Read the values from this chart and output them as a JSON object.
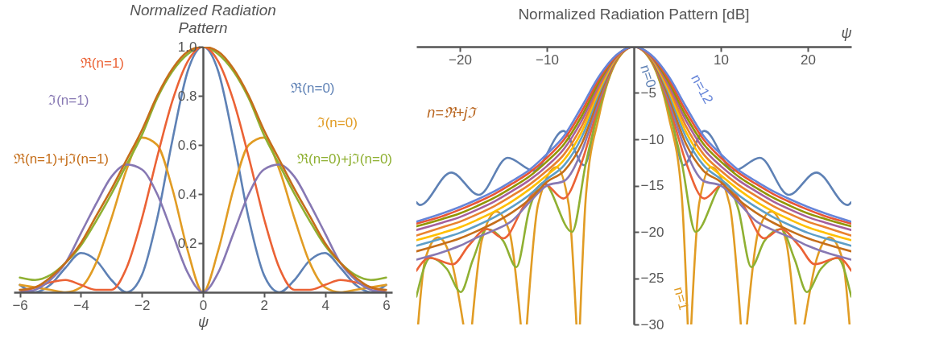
{
  "chart_data": [
    {
      "type": "line",
      "title": "Normalized Radiation Pattern",
      "xlabel": "ψ",
      "xlim": [
        -6.2,
        6.2
      ],
      "ylim": [
        0,
        1
      ],
      "xticks": [
        -6,
        -4,
        -2,
        0,
        2,
        4,
        6
      ],
      "yticks": [
        0.2,
        0.4,
        0.6,
        0.8,
        {
          "value": 1,
          "label": "1.0"
        }
      ],
      "grid": false,
      "legend": false,
      "x": [
        -6,
        -5.5,
        -5,
        -4.5,
        -4,
        -3.5,
        -3,
        -2.5,
        -2,
        -1.5,
        -1,
        -0.5,
        0,
        0.5,
        1,
        1.5,
        2,
        2.5,
        3,
        3.5,
        4,
        4.5,
        5,
        5.5,
        6
      ],
      "series": [
        {
          "name": "ℜ(n=0)",
          "color": "#5e81b5",
          "values": [
            0.03,
            0.0,
            0.03,
            0.1,
            0.16,
            0.13,
            0.05,
            0.0,
            0.07,
            0.3,
            0.62,
            0.9,
            1,
            0.9,
            0.62,
            0.3,
            0.07,
            0.0,
            0.05,
            0.13,
            0.16,
            0.1,
            0.03,
            0.0,
            0.03
          ]
        },
        {
          "name": "ℑ(n=0)",
          "color": "#e19c24",
          "values": [
            0.03,
            0.02,
            0.01,
            0.0,
            0.02,
            0.12,
            0.3,
            0.5,
            0.63,
            0.6,
            0.42,
            0.17,
            0,
            0.17,
            0.42,
            0.6,
            0.63,
            0.5,
            0.3,
            0.12,
            0.02,
            0.0,
            0.01,
            0.02,
            0.03
          ]
        },
        {
          "name": "ℜ(n=0)+jℑ(n=0)",
          "color": "#8fb032",
          "values": [
            0.06,
            0.05,
            0.07,
            0.12,
            0.19,
            0.29,
            0.4,
            0.52,
            0.64,
            0.79,
            0.9,
            0.97,
            1,
            0.97,
            0.9,
            0.79,
            0.64,
            0.52,
            0.4,
            0.29,
            0.19,
            0.12,
            0.07,
            0.05,
            0.06
          ]
        },
        {
          "name": "ℜ(n=1)",
          "color": "#eb6235",
          "values": [
            0.0,
            0.02,
            0.04,
            0.05,
            0.03,
            0.01,
            0.01,
            0.1,
            0.3,
            0.55,
            0.78,
            0.94,
            1,
            0.94,
            0.78,
            0.55,
            0.3,
            0.1,
            0.01,
            0.01,
            0.03,
            0.05,
            0.04,
            0.02,
            0.0
          ]
        },
        {
          "name": "ℑ(n=1)",
          "color": "#8778b3",
          "values": [
            0.0,
            0.01,
            0.05,
            0.12,
            0.24,
            0.36,
            0.47,
            0.52,
            0.5,
            0.4,
            0.24,
            0.08,
            0,
            0.08,
            0.24,
            0.4,
            0.5,
            0.52,
            0.47,
            0.36,
            0.24,
            0.12,
            0.05,
            0.01,
            0.0
          ]
        },
        {
          "name": "ℜ(n=1)+jℑ(n=1)",
          "color": "#c56e1a",
          "values": [
            0.01,
            0.02,
            0.06,
            0.12,
            0.2,
            0.31,
            0.42,
            0.54,
            0.66,
            0.8,
            0.91,
            0.98,
            1,
            0.98,
            0.91,
            0.8,
            0.66,
            0.54,
            0.42,
            0.31,
            0.2,
            0.12,
            0.06,
            0.02,
            0.01
          ]
        }
      ]
    },
    {
      "type": "line",
      "title": "Normalized Radiation Pattern [dB]",
      "xlabel": "ψ",
      "xlim": [
        -25,
        25
      ],
      "ylim": [
        -30,
        0
      ],
      "xticks": [
        -20,
        -10,
        10,
        20
      ],
      "yticks": [
        -5,
        -10,
        -15,
        -20,
        -25,
        -30
      ],
      "grid": false,
      "legend": false,
      "annotations": [
        "n=ℜ+jℑ"
      ],
      "x": [
        -25,
        -22,
        -20,
        -18,
        -16,
        -14,
        -12,
        -10,
        -8,
        -6,
        -4,
        -2,
        0,
        2,
        4,
        6,
        8,
        10,
        12,
        14,
        16,
        18,
        20,
        22,
        25
      ],
      "series": [
        {
          "name": "n=0",
          "color": "#5e81b5",
          "x": [
            -25,
            -24.6,
            -21,
            -17.8,
            -14.5,
            -11.5,
            -8.1,
            -5.7,
            -4,
            -2,
            0,
            2,
            4,
            5.7,
            8.1,
            11.5,
            14.5,
            17.8,
            21,
            24.6,
            25
          ],
          "values": [
            -16.8,
            -17.1,
            -13.6,
            -16,
            -12,
            -13.4,
            -9.1,
            -12.8,
            -6,
            -1.2,
            0,
            -1.2,
            -6,
            -12.8,
            -9.1,
            -13.4,
            -12,
            -16,
            -13.6,
            -17.1,
            -16.8
          ]
        },
        {
          "name": "n=1",
          "color": "#e19c24",
          "x": [
            -24.8,
            -24,
            -22.5,
            -21,
            -19.6,
            -19.1,
            -18.6,
            -17.5,
            -15.8,
            -14.3,
            -13,
            -12.65,
            -12.3,
            -11,
            -8.9,
            -7.5,
            -6.6,
            -6.4,
            -6.2,
            -5.5,
            -4,
            -2,
            0,
            2,
            4,
            5.5,
            6.2,
            6.4,
            6.6,
            7.5,
            8.9,
            11,
            12.3,
            12.65,
            13,
            14.3,
            15.8,
            17.5,
            18.6,
            19.1,
            19.6,
            21,
            22.5,
            24,
            24.8
          ],
          "values": [
            -30,
            -23,
            -20.6,
            -23,
            -30,
            null,
            -30,
            -21,
            -17.8,
            -20,
            -30,
            null,
            -30,
            -17,
            -13,
            -17,
            -30,
            null,
            -30,
            -16,
            -7.5,
            -1.6,
            0,
            -1.6,
            -7.5,
            -16,
            -30,
            null,
            -30,
            -17,
            -13,
            -17,
            -30,
            null,
            -30,
            -20,
            -17.8,
            -21,
            -30,
            null,
            -30,
            -23,
            -20.6,
            -23,
            -30
          ]
        },
        {
          "color": "#8fb032",
          "x": [
            -25,
            -23.4,
            -21.5,
            -19.9,
            -18.5,
            -16.9,
            -15,
            -13.5,
            -12,
            -10.4,
            -7.1,
            -5.5,
            -4,
            -2,
            0,
            2,
            4,
            5.5,
            7.1,
            10.4,
            12,
            13.5,
            15,
            16.9,
            18.5,
            19.9,
            21.5,
            23.4,
            25
          ],
          "values": [
            -27,
            -22.8,
            -24,
            -26.5,
            -23,
            -19.7,
            -21,
            -23.8,
            -17.5,
            -14.7,
            -20,
            -12.5,
            -6.8,
            -1.5,
            0,
            -1.5,
            -6.8,
            -12.5,
            -20,
            -14.7,
            -17.5,
            -23.8,
            -21,
            -19.7,
            -23,
            -26.5,
            -24,
            -22.8,
            -27
          ]
        },
        {
          "color": "#eb6235",
          "x": [
            -25,
            -23.5,
            -20.8,
            -19,
            -16.9,
            -15,
            -12.5,
            -10.3,
            -8.1,
            -6,
            -4,
            -2,
            0,
            2,
            4,
            6,
            8.1,
            10.3,
            12.5,
            15,
            16.9,
            19,
            20.8,
            23.5,
            25
          ],
          "values": [
            -24.2,
            -22.8,
            -23.5,
            -21.5,
            -19.7,
            -20.7,
            -17,
            -14.8,
            -16.4,
            -12.5,
            -6.2,
            -1.4,
            0,
            -1.4,
            -6.2,
            -12.5,
            -16.4,
            -14.8,
            -17,
            -20.7,
            -19.7,
            -21.5,
            -23.5,
            -22.8,
            -24.2
          ]
        },
        {
          "color": "#8778b3",
          "values": [
            -23.0,
            -22.2,
            -21.5,
            -20.6,
            -19.8,
            -18.8,
            -16.8,
            -15.0,
            -14.5,
            -11.3,
            -5.8,
            -1.3,
            0,
            -1.3,
            -5.8,
            -11.3,
            -14.5,
            -15.0,
            -16.8,
            -18.8,
            -19.8,
            -20.6,
            -21.5,
            -22.2,
            -23.0
          ]
        },
        {
          "color": "#c56e1a",
          "values": [
            -22.1,
            -21.3,
            -20.7,
            -19.9,
            -19.0,
            -17.9,
            -16.5,
            -14.6,
            -13.4,
            -10.5,
            -5.4,
            -1.3,
            0,
            -1.3,
            -5.4,
            -10.5,
            -13.4,
            -14.6,
            -16.5,
            -17.9,
            -19.0,
            -19.9,
            -20.7,
            -21.3,
            -22.1
          ]
        },
        {
          "color": "#5d9ec7",
          "values": [
            -21.5,
            -20.7,
            -20.1,
            -19.3,
            -18.4,
            -17.3,
            -16.0,
            -14.3,
            -12.8,
            -9.8,
            -5.0,
            -1.2,
            0,
            -1.2,
            -5.0,
            -9.8,
            -12.8,
            -14.3,
            -16.0,
            -17.3,
            -18.4,
            -19.3,
            -20.1,
            -20.7,
            -21.5
          ]
        },
        {
          "color": "#ffbf00",
          "values": [
            -20.9,
            -20.1,
            -19.5,
            -18.7,
            -17.8,
            -16.7,
            -15.4,
            -13.9,
            -12.2,
            -9.2,
            -4.7,
            -1.2,
            0,
            -1.2,
            -4.7,
            -9.2,
            -12.2,
            -13.9,
            -15.4,
            -16.7,
            -17.8,
            -18.7,
            -19.5,
            -20.1,
            -20.9
          ]
        },
        {
          "color": "#e9822f",
          "values": [
            -20.4,
            -19.5,
            -18.9,
            -18.1,
            -17.2,
            -16.1,
            -14.9,
            -13.4,
            -11.6,
            -8.6,
            -4.4,
            -1.1,
            0,
            -1.1,
            -4.4,
            -8.6,
            -11.6,
            -13.4,
            -14.9,
            -16.1,
            -17.2,
            -18.1,
            -18.9,
            -19.5,
            -20.4
          ]
        },
        {
          "color": "#a5609d",
          "values": [
            -19.8,
            -19.0,
            -18.4,
            -17.6,
            -16.7,
            -15.6,
            -14.4,
            -12.9,
            -11.0,
            -8.0,
            -4.1,
            -1.1,
            0,
            -1.1,
            -4.1,
            -8.0,
            -11.0,
            -12.9,
            -14.4,
            -15.6,
            -16.7,
            -17.6,
            -18.4,
            -19.0,
            -19.8
          ]
        },
        {
          "color": "#929600",
          "values": [
            -19.4,
            -18.6,
            -18.0,
            -17.2,
            -16.3,
            -15.2,
            -14.0,
            -12.4,
            -10.5,
            -7.5,
            -3.8,
            -1.0,
            0,
            -1.0,
            -3.8,
            -7.5,
            -10.5,
            -12.4,
            -14.0,
            -15.2,
            -16.3,
            -17.2,
            -18.0,
            -18.6,
            -19.4
          ]
        },
        {
          "color": "#e95536",
          "values": [
            -19.1,
            -18.3,
            -17.6,
            -16.8,
            -15.9,
            -14.8,
            -13.6,
            -12.0,
            -10.0,
            -7.0,
            -3.5,
            -1.0,
            0,
            -1.0,
            -3.5,
            -7.0,
            -10.0,
            -12.0,
            -13.6,
            -14.8,
            -15.9,
            -16.8,
            -17.6,
            -18.3,
            -19.1
          ]
        },
        {
          "name": "n=12",
          "color": "#6685d9",
          "values": [
            -18.9,
            -18.0,
            -17.3,
            -16.5,
            -15.6,
            -14.5,
            -13.3,
            -11.6,
            -9.6,
            -6.5,
            -3.2,
            -0.9,
            0,
            -0.9,
            -3.2,
            -6.5,
            -9.6,
            -11.6,
            -13.3,
            -14.5,
            -15.6,
            -16.5,
            -17.3,
            -18.0,
            -18.9
          ]
        }
      ]
    }
  ]
}
